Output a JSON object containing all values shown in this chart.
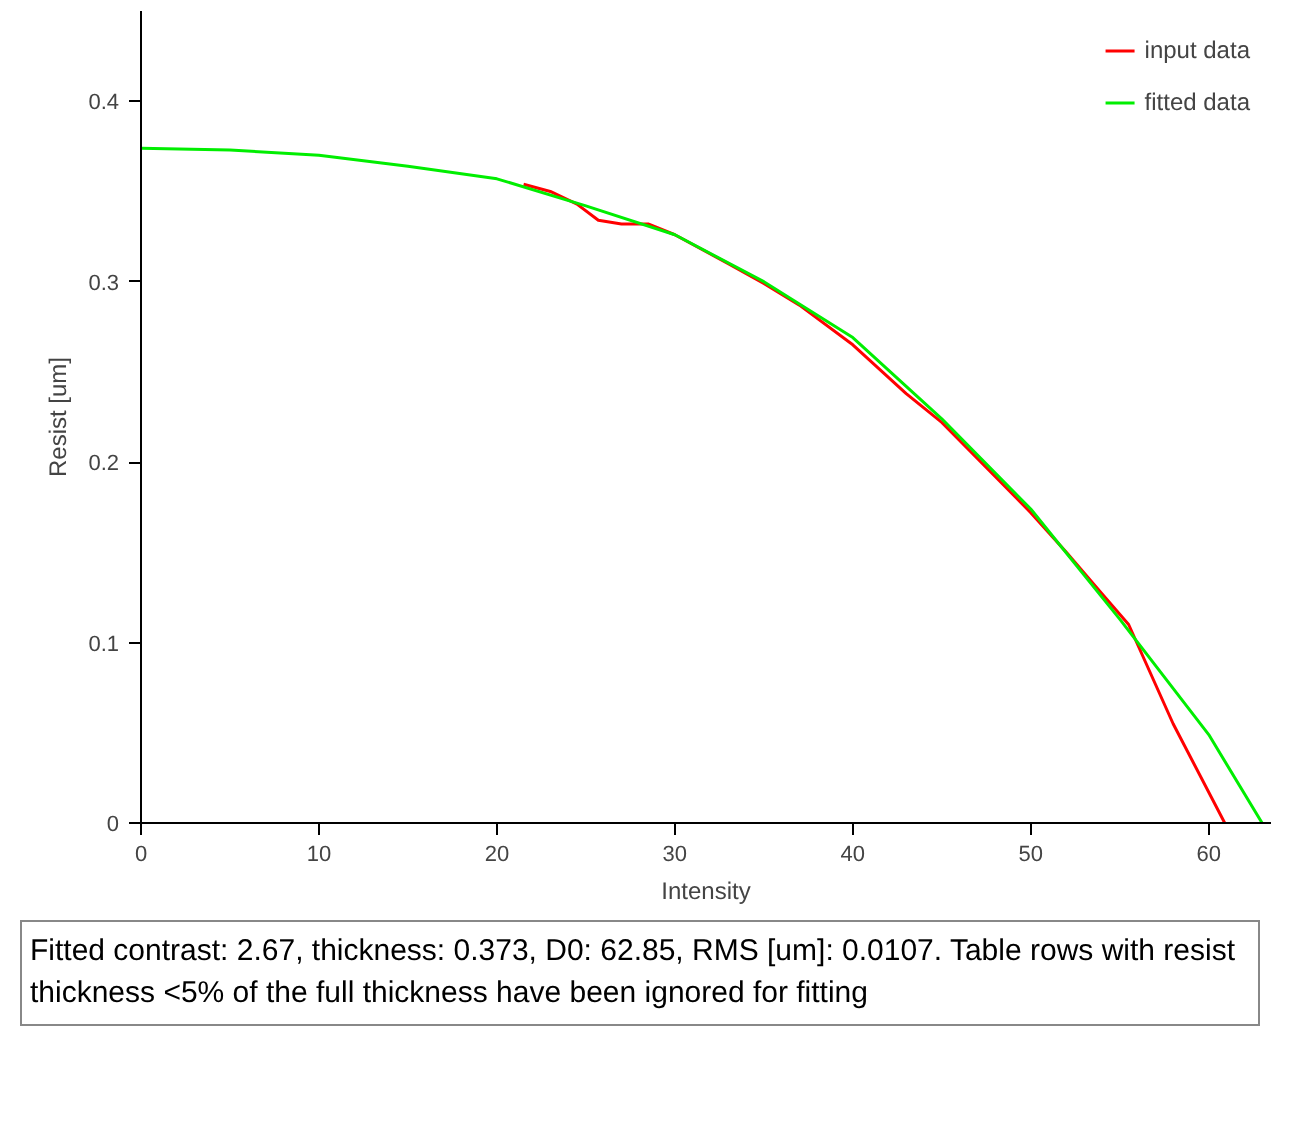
{
  "chart_data": {
    "type": "line",
    "xlabel": "Intensity",
    "ylabel": "Resist [um]",
    "xlim": [
      0,
      63.5
    ],
    "ylim": [
      0,
      0.45
    ],
    "xticks": [
      0,
      10,
      20,
      30,
      40,
      50,
      60
    ],
    "yticks": [
      0,
      0.1,
      0.2,
      0.3,
      0.4
    ],
    "grid": false,
    "legend": "top right",
    "marker": "none",
    "line_style": "solid",
    "series": [
      {
        "name": "input data",
        "color": "#ff0000",
        "x": [
          21.5,
          23,
          24.5,
          25.7,
          27,
          28.5,
          30,
          33,
          35,
          37,
          40,
          43,
          45,
          48,
          50,
          52,
          54,
          55.5,
          58,
          60.9
        ],
        "values": [
          0.354,
          0.35,
          0.343,
          0.334,
          0.332,
          0.332,
          0.326,
          0.31,
          0.299,
          0.287,
          0.265,
          0.238,
          0.222,
          0.192,
          0.172,
          0.15,
          0.127,
          0.11,
          0.055,
          0
        ]
      },
      {
        "name": "fitted data",
        "color": "#00ee00",
        "x": [
          0,
          5,
          10,
          15,
          20,
          25,
          30,
          35,
          40,
          45,
          50,
          55,
          60,
          63
        ],
        "values": [
          0.374,
          0.373,
          0.37,
          0.364,
          0.357,
          0.342,
          0.326,
          0.3,
          0.269,
          0.224,
          0.174,
          0.113,
          0.049,
          0
        ]
      }
    ],
    "annotations": [
      "Fitted contrast: 2.67, thickness: 0.373, D0: 62.85, RMS [um]: 0.0107. Table rows with resist thickness <5% of the full thickness have been ignored for fitting"
    ]
  }
}
